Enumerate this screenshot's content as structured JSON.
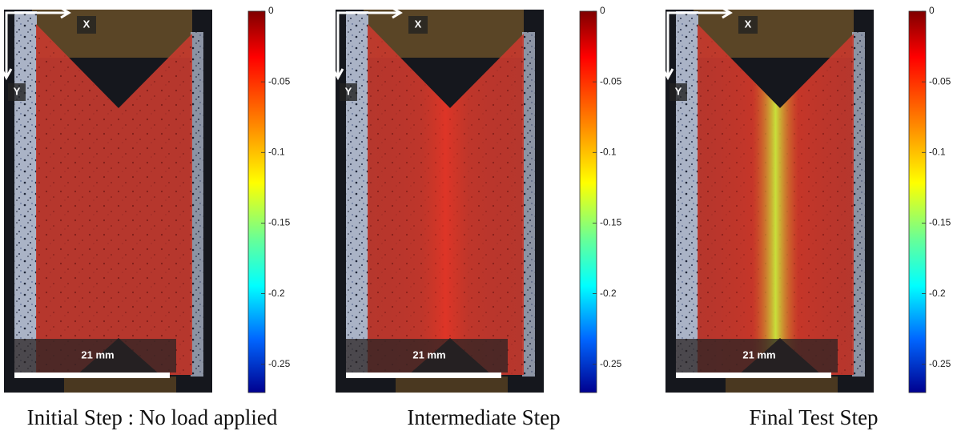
{
  "colorbar": {
    "lim": [
      -0.27,
      0
    ],
    "ticks": [
      0,
      -0.05,
      -0.1,
      -0.15,
      -0.2,
      -0.25
    ]
  },
  "panels": [
    {
      "caption": "Initial Step : No load applied",
      "axis_x": "X",
      "axis_y": "Y",
      "scale_label": "21 mm"
    },
    {
      "caption": "Intermediate Step",
      "axis_x": "X",
      "axis_y": "Y",
      "scale_label": "21 mm"
    },
    {
      "caption": "Final Test Step",
      "axis_x": "X",
      "axis_y": "Y",
      "scale_label": "21 mm"
    }
  ]
}
